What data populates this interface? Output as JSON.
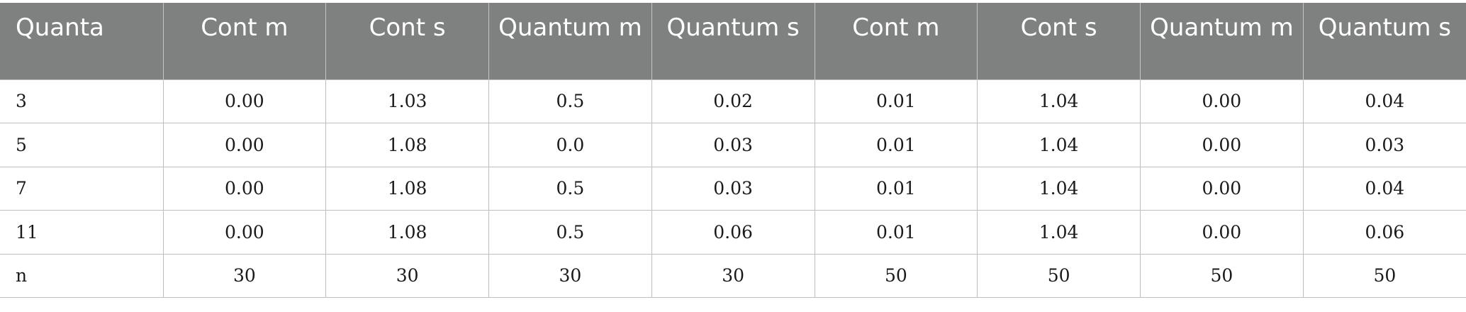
{
  "table": {
    "headers": [
      "Quanta",
      "Cont m",
      "Cont s",
      "Quantum m",
      "Quantum s",
      "Cont m",
      "Cont s",
      "Quantum m",
      "Quantum s"
    ],
    "rows": [
      [
        "3",
        "0.00",
        "1.03",
        "0.5",
        "0.02",
        "0.01",
        "1.04",
        "0.00",
        "0.04"
      ],
      [
        "5",
        "0.00",
        "1.08",
        "0.0",
        "0.03",
        "0.01",
        "1.04",
        "0.00",
        "0.03"
      ],
      [
        "7",
        "0.00",
        "1.08",
        "0.5",
        "0.03",
        "0.01",
        "1.04",
        "0.00",
        "0.04"
      ],
      [
        "11",
        "0.00",
        "1.08",
        "0.5",
        "0.06",
        "0.01",
        "1.04",
        "0.00",
        "0.06"
      ],
      [
        "n",
        "30",
        "30",
        "30",
        "30",
        "50",
        "50",
        "50",
        "50"
      ]
    ]
  },
  "colors": {
    "header_background": "#7f8080",
    "header_text": "#ffffff",
    "grid_lines": "#bdbdbd"
  }
}
